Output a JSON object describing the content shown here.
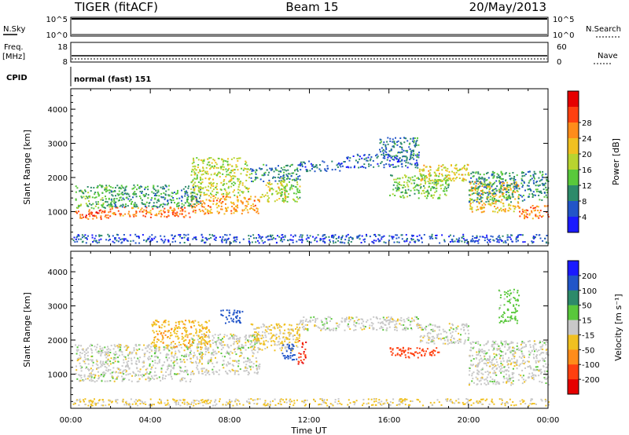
{
  "header": {
    "left_title": "TIGER (fitACF)",
    "center_title": "Beam 15",
    "right_title": "20/May/2013"
  },
  "status_rows": {
    "nsky_label": "N.Sky",
    "nsky_top": "10^5",
    "nsky_bottom": "10^0",
    "nsearch_label": "N.Search",
    "nsearch_top": "10^5",
    "nsearch_bottom": "10^0",
    "freq_label_line1": "Freq.",
    "freq_label_line2": "[MHz]",
    "freq_top": "18",
    "freq_bottom": "8",
    "nave_label": "Nave",
    "nave_top": "60",
    "nave_bottom": "0",
    "cpid_label": "CPID",
    "cpid_value": "normal (fast) 151"
  },
  "chart_data": [
    {
      "type": "heatmap",
      "name": "Power",
      "xlabel": "",
      "ylabel": "Slant Range [km]",
      "x_ticks": [
        "00:00",
        "04:00",
        "08:00",
        "12:00",
        "16:00",
        "20:00",
        "00:00"
      ],
      "y_ticks": [
        1000,
        2000,
        3000,
        4000
      ],
      "ylim": [
        0,
        4600
      ],
      "colorbar": {
        "label": "Power [dB]",
        "ticks": [
          "4",
          "8",
          "12",
          "16",
          "20",
          "24",
          "28"
        ],
        "colors": [
          "#1a1aff",
          "#2255c8",
          "#2d8a6a",
          "#59c83b",
          "#b8d430",
          "#f0c020",
          "#ff8c1a",
          "#ff4010",
          "#e60000"
        ]
      },
      "bands": [
        {
          "t0": 0.2,
          "t1": 2.0,
          "r0": 800,
          "r1": 1100,
          "level": 26
        },
        {
          "t0": 2.0,
          "t1": 6.0,
          "r0": 850,
          "r1": 1150,
          "level": 24
        },
        {
          "t0": 6.0,
          "t1": 9.5,
          "r0": 950,
          "r1": 1500,
          "level": 22
        },
        {
          "t0": 9.5,
          "t1": 10.8,
          "r0": 1300,
          "r1": 1900,
          "level": 18
        },
        {
          "t0": 0.2,
          "t1": 2.0,
          "r0": 1100,
          "r1": 1800,
          "level": 12
        },
        {
          "t0": 2.0,
          "t1": 6.5,
          "r0": 1150,
          "r1": 1800,
          "level": 10
        },
        {
          "t0": 6.0,
          "t1": 9.0,
          "r0": 1500,
          "r1": 2600,
          "level": 16
        },
        {
          "t0": 9.0,
          "t1": 11.5,
          "r0": 1900,
          "r1": 2400,
          "level": 8
        },
        {
          "t0": 10.5,
          "t1": 11.5,
          "r0": 1300,
          "r1": 2000,
          "level": 14
        },
        {
          "t0": 11.5,
          "t1": 13.8,
          "r0": 2200,
          "r1": 2500,
          "level": 6
        },
        {
          "t0": 13.8,
          "t1": 17.5,
          "r0": 2300,
          "r1": 2700,
          "level": 6
        },
        {
          "t0": 15.5,
          "t1": 17.5,
          "r0": 2600,
          "r1": 3200,
          "level": 8
        },
        {
          "t0": 16.0,
          "t1": 19.0,
          "r0": 1400,
          "r1": 2100,
          "level": 13
        },
        {
          "t0": 17.5,
          "t1": 20.0,
          "r0": 1900,
          "r1": 2400,
          "level": 18
        },
        {
          "t0": 20.0,
          "t1": 22.5,
          "r0": 1000,
          "r1": 1900,
          "level": 20
        },
        {
          "t0": 22.5,
          "t1": 24.0,
          "r0": 800,
          "r1": 1200,
          "level": 24
        },
        {
          "t0": 20.0,
          "t1": 24.0,
          "r0": 1300,
          "r1": 2200,
          "level": 9
        },
        {
          "t0": 0.0,
          "t1": 24.0,
          "r0": 100,
          "r1": 350,
          "level": 5
        }
      ]
    },
    {
      "type": "heatmap",
      "name": "Velocity",
      "xlabel": "Time UT",
      "ylabel": "Slant Range [km]",
      "x_ticks": [
        "00:00",
        "04:00",
        "08:00",
        "12:00",
        "16:00",
        "20:00",
        "00:00"
      ],
      "y_ticks": [
        1000,
        2000,
        3000,
        4000
      ],
      "ylim": [
        0,
        4600
      ],
      "colorbar": {
        "label": "Velocity [m s⁻¹]",
        "ticks": [
          "200",
          "100",
          "50",
          "15",
          "-15",
          "-50",
          "-100",
          "-200"
        ],
        "colors": [
          "#1a1aff",
          "#2255c8",
          "#2d8a6a",
          "#59c83b",
          "#c8c8c8",
          "#f0c020",
          "#ff8c1a",
          "#ff4010",
          "#e60000"
        ]
      },
      "bands": [
        {
          "t0": 0.2,
          "t1": 6.0,
          "r0": 800,
          "r1": 1900,
          "level": 0
        },
        {
          "t0": 6.0,
          "t1": 9.5,
          "r0": 1000,
          "r1": 2200,
          "level": 0
        },
        {
          "t0": 9.0,
          "t1": 11.5,
          "r0": 1700,
          "r1": 2500,
          "level": -20
        },
        {
          "t0": 11.5,
          "t1": 17.5,
          "r0": 2300,
          "r1": 2700,
          "level": 0
        },
        {
          "t0": 17.5,
          "t1": 20.0,
          "r0": 1900,
          "r1": 2500,
          "level": 0
        },
        {
          "t0": 20.0,
          "t1": 24.0,
          "r0": 700,
          "r1": 2000,
          "level": 0
        },
        {
          "t0": 7.5,
          "t1": 8.6,
          "r0": 2500,
          "r1": 2900,
          "level": 150
        },
        {
          "t0": 10.6,
          "t1": 11.4,
          "r0": 1400,
          "r1": 1900,
          "level": 150
        },
        {
          "t0": 11.4,
          "t1": 11.8,
          "r0": 1300,
          "r1": 2000,
          "level": -200
        },
        {
          "t0": 16.0,
          "t1": 18.5,
          "r0": 1500,
          "r1": 1800,
          "level": -120
        },
        {
          "t0": 4.0,
          "t1": 7.0,
          "r0": 1800,
          "r1": 2600,
          "level": -40
        },
        {
          "t0": 21.5,
          "t1": 22.5,
          "r0": 2500,
          "r1": 3500,
          "level": 30
        },
        {
          "t0": 0.0,
          "t1": 24.0,
          "r0": 100,
          "r1": 300,
          "level": -20
        }
      ]
    }
  ],
  "x_axis_title": "Time UT"
}
